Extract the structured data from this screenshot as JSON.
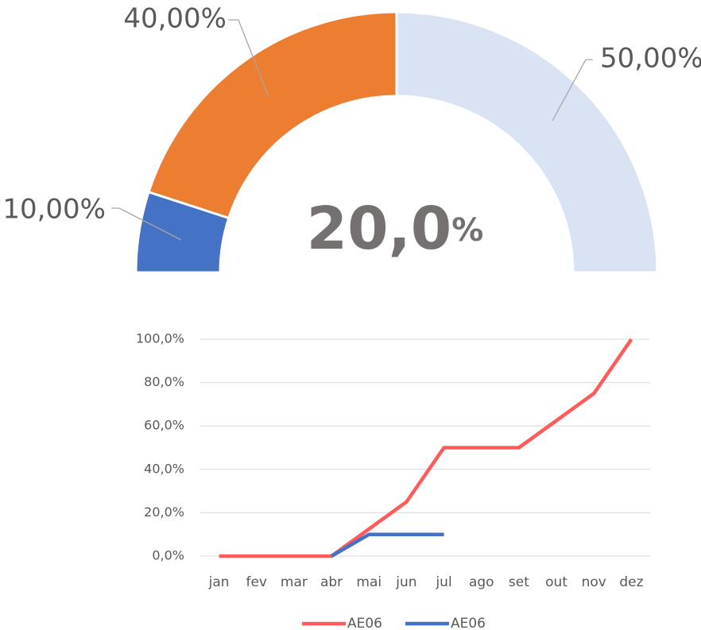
{
  "chart_data": [
    {
      "type": "pie",
      "values": [
        10,
        40,
        50
      ],
      "value_labels": [
        "10,00%",
        "40,00%",
        "50,00%"
      ],
      "colors": [
        "#4472c4",
        "#ed7d31",
        "#dae3f3"
      ],
      "center_text": {
        "number": "20,0",
        "unit": "%"
      }
    },
    {
      "type": "line",
      "categories": [
        "jan",
        "fev",
        "mar",
        "abr",
        "mai",
        "jun",
        "jul",
        "ago",
        "set",
        "out",
        "nov",
        "dez"
      ],
      "series": [
        {
          "name": "AE06",
          "color": "#ff5b5b",
          "values": [
            0,
            0,
            0,
            0,
            12.5,
            25,
            50,
            50,
            50,
            62.5,
            75,
            100
          ]
        },
        {
          "name": "AE06",
          "color": "#4472c4",
          "values": [
            null,
            null,
            null,
            0,
            10,
            10,
            10,
            null,
            null,
            null,
            null,
            null
          ]
        }
      ],
      "ylim": [
        0,
        100
      ],
      "yticks": [
        {
          "value": 0,
          "label": "0,0%"
        },
        {
          "value": 20,
          "label": "20,0%"
        },
        {
          "value": 40,
          "label": "40,0%"
        },
        {
          "value": 60,
          "label": "60,0%"
        },
        {
          "value": 80,
          "label": "80,0%"
        },
        {
          "value": 100,
          "label": "100,0%"
        }
      ],
      "grid": true,
      "legend": "bottom"
    }
  ]
}
